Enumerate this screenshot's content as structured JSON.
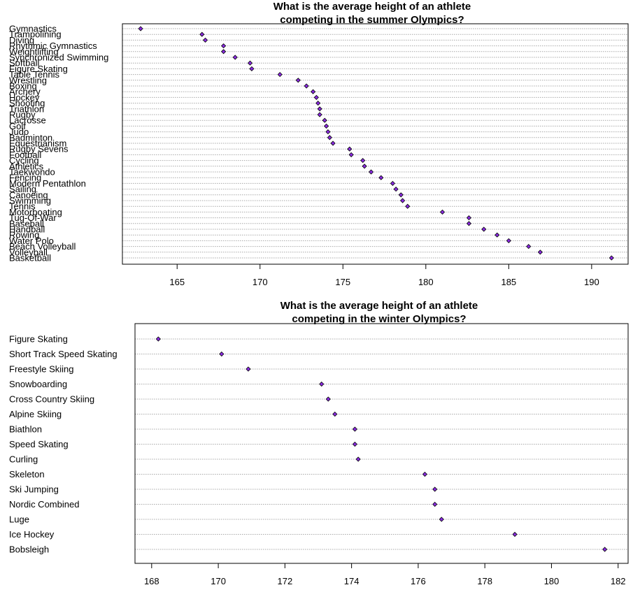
{
  "chart_data": [
    {
      "type": "scatter",
      "style": "dotplot",
      "title": [
        "What is the average height of an athlete",
        "competing in the summer Olympics?"
      ],
      "xlim": [
        161.7,
        192.2
      ],
      "xticks": [
        165,
        170,
        175,
        180,
        185,
        190
      ],
      "grid": true,
      "point_color": "#8a2be2",
      "categories": [
        "Gymnastics",
        "Trampolining",
        "Diving",
        "Rhythmic Gymnastics",
        "Weightlifting",
        "Synchronized Swimming",
        "Softball",
        "Figure Skating",
        "Table Tennis",
        "Wrestling",
        "Boxing",
        "Archery",
        "Hockey",
        "Shooting",
        "Triathlon",
        "Rugby",
        "Lacrosse",
        "Golf",
        "Judo",
        "Badminton",
        "Equestrianism",
        "Rugby Sevens",
        "Football",
        "Cycling",
        "Athletics",
        "Taekwondo",
        "Fencing",
        "Modern Pentathlon",
        "Sailing",
        "Canoeing",
        "Swimming",
        "Tennis",
        "Motorboating",
        "Tug-Of-War",
        "Baseball",
        "Handball",
        "Rowing",
        "Water Polo",
        "Beach Volleyball",
        "Volleyball",
        "Basketball"
      ],
      "values": [
        162.8,
        166.5,
        166.7,
        167.8,
        167.8,
        168.5,
        169.4,
        169.5,
        171.2,
        172.3,
        172.8,
        173.2,
        173.4,
        173.5,
        173.6,
        173.6,
        173.9,
        174.0,
        174.1,
        174.2,
        174.4,
        175.4,
        175.5,
        176.2,
        176.3,
        176.7,
        177.3,
        178.0,
        178.2,
        178.5,
        178.6,
        178.9,
        181.0,
        182.6,
        182.6,
        183.5,
        184.3,
        185.0,
        186.2,
        186.9,
        191.2
      ]
    },
    {
      "type": "scatter",
      "style": "dotplot",
      "title": [
        "What is the average height of an athlete",
        "competing in the winter Olympics?"
      ],
      "xlim": [
        167.5,
        182.3
      ],
      "xticks": [
        168,
        170,
        172,
        174,
        176,
        178,
        180,
        182
      ],
      "grid": true,
      "point_color": "#8a2be2",
      "categories": [
        "Figure Skating",
        "Short Track Speed Skating",
        "Freestyle Skiing",
        "Snowboarding",
        "Cross Country Skiing",
        "Alpine Skiing",
        "Biathlon",
        "Speed Skating",
        "Curling",
        "Skeleton",
        "Ski Jumping",
        "Nordic Combined",
        "Luge",
        "Ice Hockey",
        "Bobsleigh"
      ],
      "values": [
        168.2,
        170.1,
        170.9,
        173.1,
        173.3,
        173.5,
        174.1,
        174.1,
        174.2,
        176.2,
        176.5,
        176.5,
        176.7,
        178.9,
        181.6
      ]
    }
  ]
}
